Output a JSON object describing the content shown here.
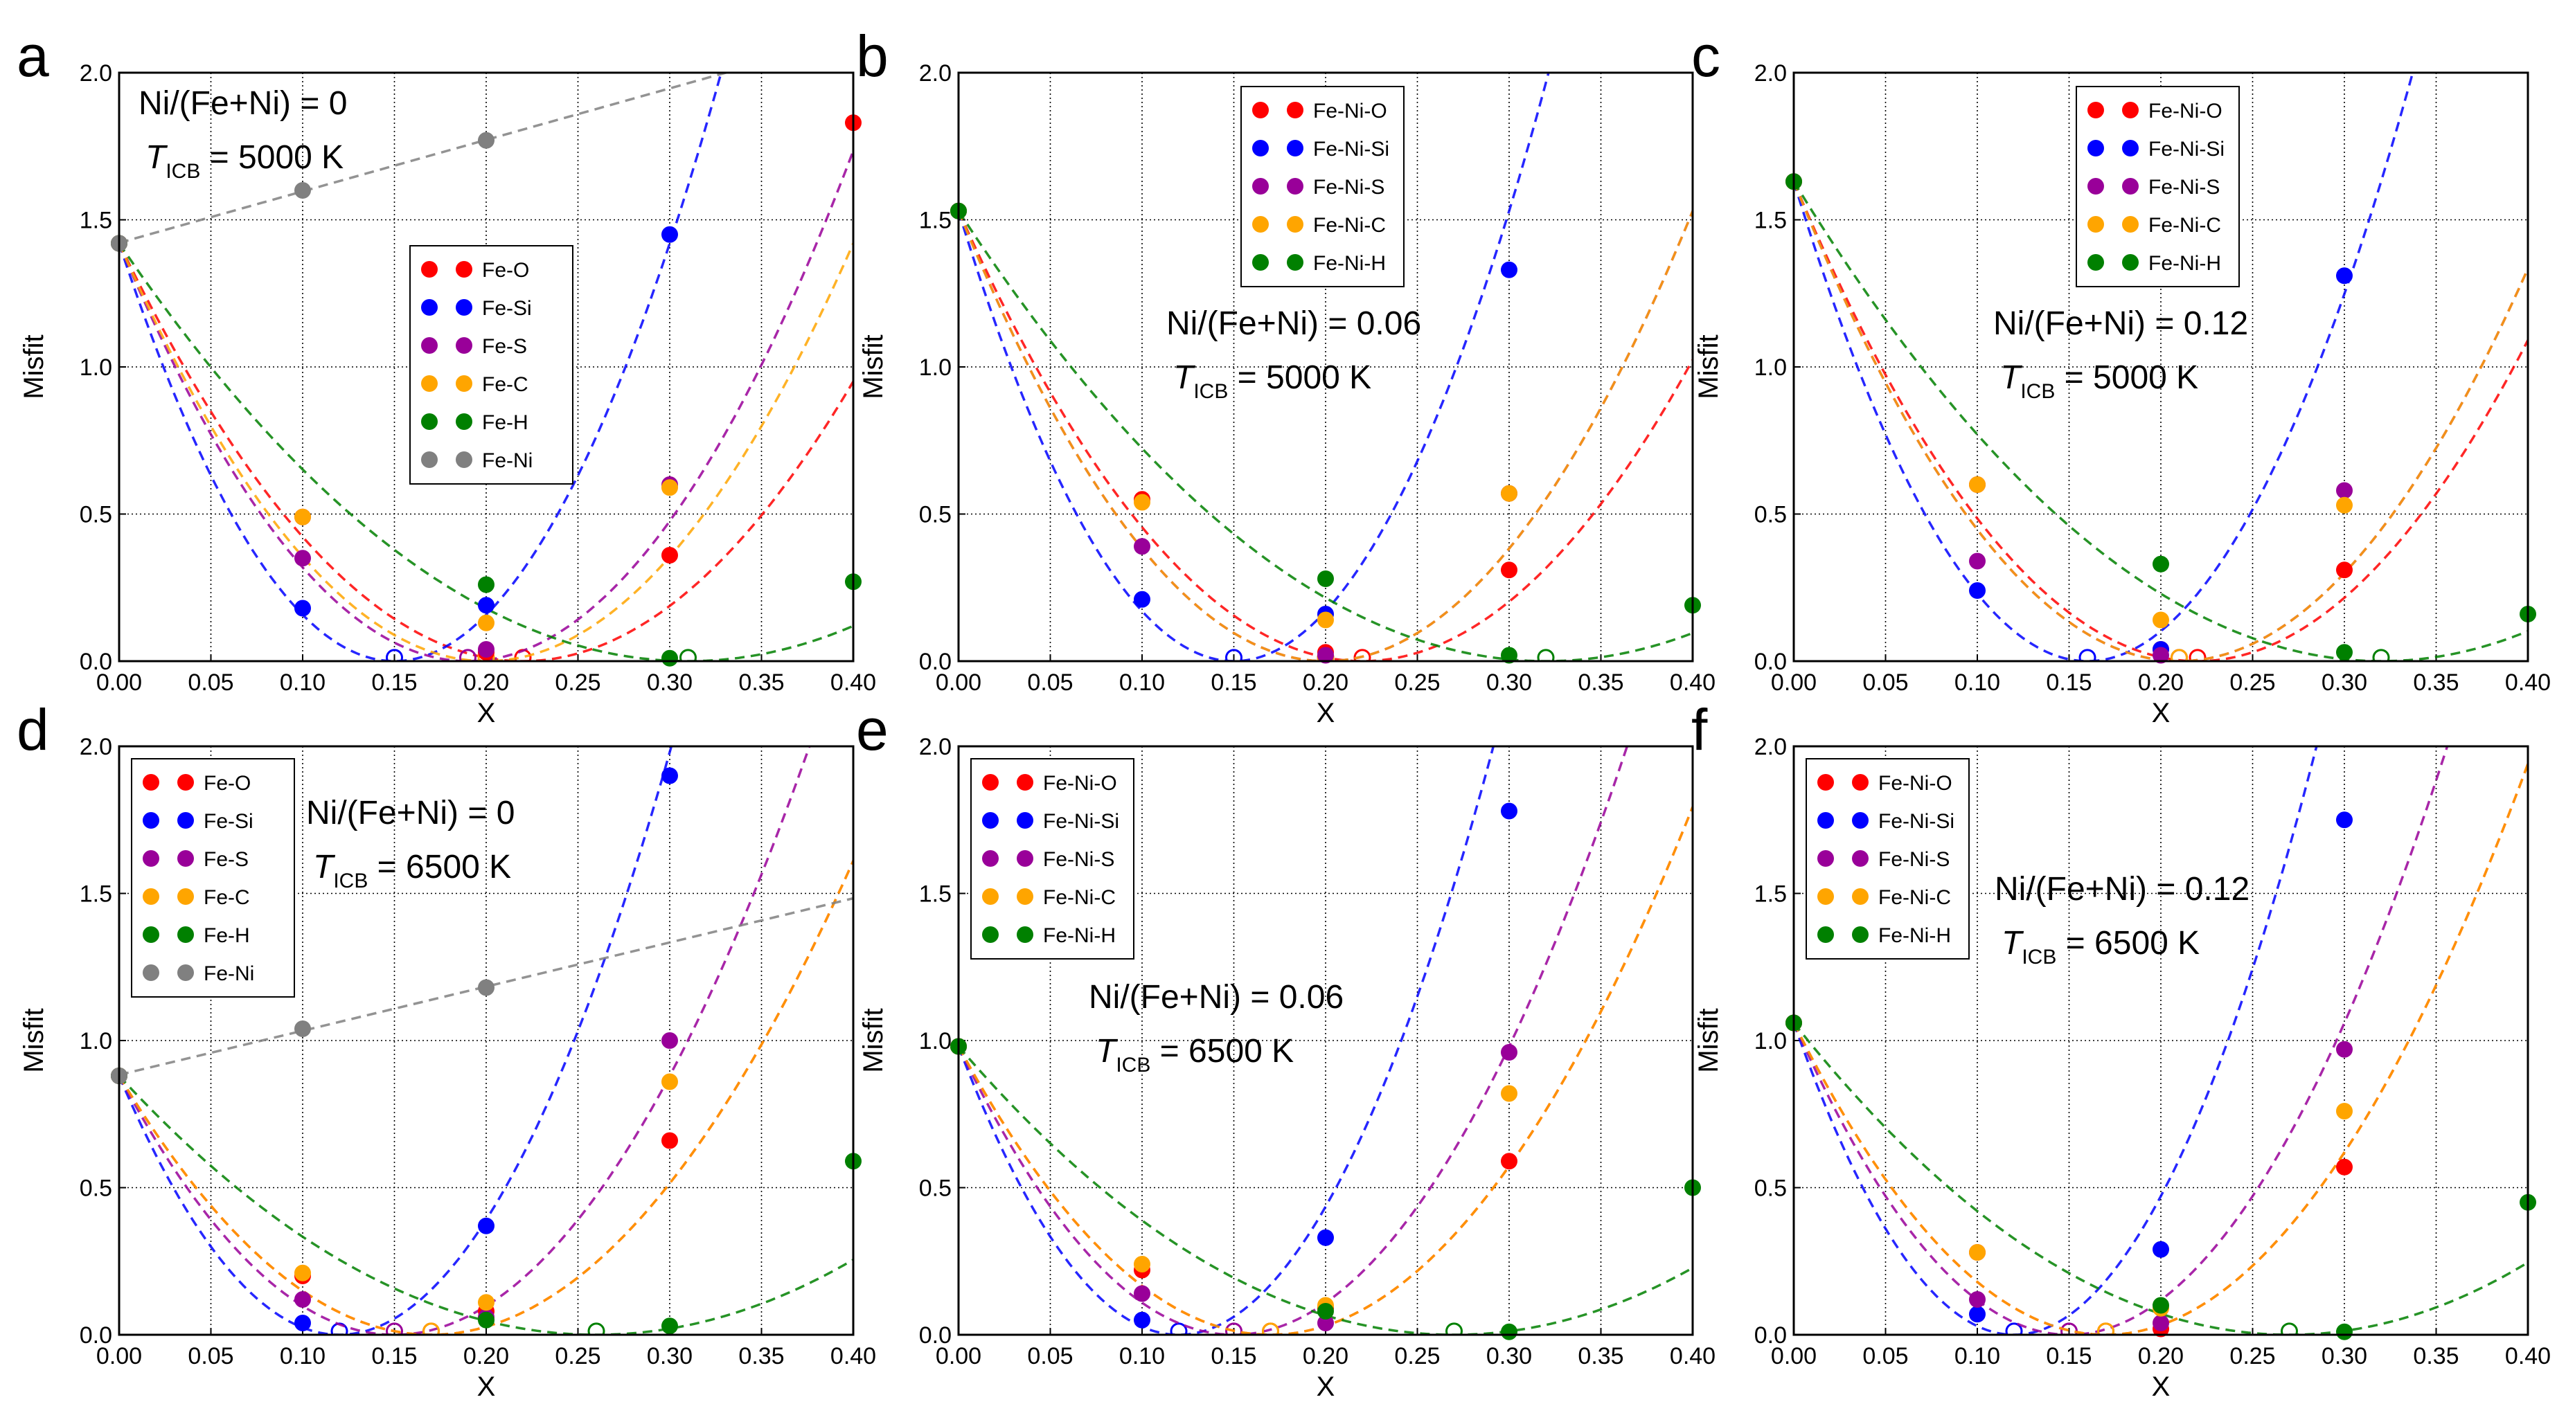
{
  "figure": {
    "colors": {
      "Fe-O": "#ff0000",
      "Fe-Si": "#0000ff",
      "Fe-S": "#990099",
      "Fe-C": "#ffa500",
      "Fe-H": "#008000",
      "Fe-Ni": "#808080"
    }
  },
  "chart_data": [
    {
      "panel": "a",
      "type": "scatter",
      "annotation": {
        "line1": "Ni/(Fe+Ni) = 0",
        "t_symbol": "T",
        "t_sub": "ICB",
        "t_value": " = 5000 K"
      },
      "xlabel": "X",
      "ylabel": "Misfit",
      "xlim": [
        0,
        0.4
      ],
      "ylim": [
        0,
        2.0
      ],
      "xticks": [
        "0.00",
        "0.05",
        "0.10",
        "0.15",
        "0.20",
        "0.25",
        "0.30",
        "0.35",
        "0.40"
      ],
      "yticks": [
        "0.0",
        "0.5",
        "1.0",
        "1.5",
        "2.0"
      ],
      "grid": true,
      "legend_position": "center",
      "series": [
        {
          "name": "Fe-O",
          "intercept": 1.42,
          "x": [
            0.1,
            0.2,
            0.3,
            0.4
          ],
          "y": [
            0.49,
            0.03,
            0.36,
            1.83
          ],
          "fit_min": 0.22
        },
        {
          "name": "Fe-Si",
          "intercept": 1.42,
          "x": [
            0.1,
            0.2,
            0.3
          ],
          "y": [
            0.18,
            0.19,
            1.45
          ],
          "fit_min": 0.15
        },
        {
          "name": "Fe-S",
          "intercept": 1.42,
          "x": [
            0.1,
            0.2,
            0.3
          ],
          "y": [
            0.35,
            0.04,
            0.6
          ],
          "fit_min": 0.19
        },
        {
          "name": "Fe-C",
          "intercept": 1.42,
          "x": [
            0.1,
            0.2,
            0.3
          ],
          "y": [
            0.49,
            0.13,
            0.59
          ],
          "fit_min": 0.2
        },
        {
          "name": "Fe-H",
          "intercept": 1.42,
          "x": [
            0.2,
            0.3,
            0.4
          ],
          "y": [
            0.26,
            0.01,
            0.27
          ],
          "fit_min": 0.31
        },
        {
          "name": "Fe-Ni",
          "intercept": 1.42,
          "x": [
            0.1,
            0.2
          ],
          "y": [
            1.6,
            1.77
          ],
          "linear": true
        }
      ]
    },
    {
      "panel": "b",
      "type": "scatter",
      "annotation": {
        "line1": "Ni/(Fe+Ni) = 0.06",
        "t_symbol": "T",
        "t_sub": "ICB",
        "t_value": " = 5000 K"
      },
      "xlabel": "X",
      "ylabel": "Misfit",
      "xlim": [
        0,
        0.4
      ],
      "ylim": [
        0,
        2.0
      ],
      "xticks": [
        "0.00",
        "0.05",
        "0.10",
        "0.15",
        "0.20",
        "0.25",
        "0.30",
        "0.35",
        "0.40"
      ],
      "yticks": [
        "0.0",
        "0.5",
        "1.0",
        "1.5",
        "2.0"
      ],
      "grid": true,
      "legend_position": "top-center",
      "series": [
        {
          "name": "Fe-Ni-O",
          "intercept": 1.53,
          "x": [
            0.1,
            0.2,
            0.3
          ],
          "y": [
            0.55,
            0.03,
            0.31
          ],
          "fit_min": 0.22
        },
        {
          "name": "Fe-Ni-Si",
          "intercept": 1.53,
          "x": [
            0.1,
            0.2,
            0.3
          ],
          "y": [
            0.21,
            0.16,
            1.33
          ],
          "fit_min": 0.15
        },
        {
          "name": "Fe-Ni-S",
          "intercept": 1.53,
          "x": [
            0.1,
            0.2,
            0.3
          ],
          "y": [
            0.39,
            0.02,
            0.57
          ],
          "fit_min": 0.2
        },
        {
          "name": "Fe-Ni-C",
          "intercept": 1.53,
          "x": [
            0.1,
            0.2,
            0.3
          ],
          "y": [
            0.54,
            0.14,
            0.57
          ],
          "fit_min": 0.2
        },
        {
          "name": "Fe-Ni-H",
          "intercept": 1.53,
          "x": [
            0.2,
            0.3,
            0.4
          ],
          "y": [
            0.28,
            0.02,
            0.19
          ],
          "fit_min": 0.32
        }
      ]
    },
    {
      "panel": "c",
      "type": "scatter",
      "annotation": {
        "line1": "Ni/(Fe+Ni) = 0.12",
        "t_symbol": "T",
        "t_sub": "ICB",
        "t_value": " = 5000 K"
      },
      "xlabel": "X",
      "ylabel": "Misfit",
      "xlim": [
        0,
        0.4
      ],
      "ylim": [
        0,
        2.0
      ],
      "xticks": [
        "0.00",
        "0.05",
        "0.10",
        "0.15",
        "0.20",
        "0.25",
        "0.30",
        "0.35",
        "0.40"
      ],
      "yticks": [
        "0.0",
        "0.5",
        "1.0",
        "1.5",
        "2.0"
      ],
      "grid": true,
      "legend_position": "top-center",
      "series": [
        {
          "name": "Fe-Ni-O",
          "intercept": 1.63,
          "x": [
            0.1,
            0.2,
            0.3
          ],
          "y": [
            0.6,
            0.04,
            0.31
          ],
          "fit_min": 0.22
        },
        {
          "name": "Fe-Ni-Si",
          "intercept": 1.63,
          "x": [
            0.1,
            0.2,
            0.3
          ],
          "y": [
            0.24,
            0.04,
            1.31
          ],
          "fit_min": 0.16
        },
        {
          "name": "Fe-Ni-S",
          "intercept": 1.63,
          "x": [
            0.1,
            0.2,
            0.3
          ],
          "y": [
            0.34,
            0.02,
            0.58
          ],
          "fit_min": 0.21
        },
        {
          "name": "Fe-Ni-C",
          "intercept": 1.63,
          "x": [
            0.1,
            0.2,
            0.3
          ],
          "y": [
            0.6,
            0.14,
            0.53
          ],
          "fit_min": 0.21
        },
        {
          "name": "Fe-Ni-H",
          "intercept": 1.63,
          "x": [
            0.2,
            0.3,
            0.4
          ],
          "y": [
            0.33,
            0.03,
            0.16
          ],
          "fit_min": 0.32
        }
      ]
    },
    {
      "panel": "d",
      "type": "scatter",
      "annotation": {
        "line1": "Ni/(Fe+Ni) = 0",
        "t_symbol": "T",
        "t_sub": "ICB",
        "t_value": " = 6500 K"
      },
      "xlabel": "X",
      "ylabel": "Misfit",
      "xlim": [
        0,
        0.4
      ],
      "ylim": [
        0,
        2.0
      ],
      "xticks": [
        "0.00",
        "0.05",
        "0.10",
        "0.15",
        "0.20",
        "0.25",
        "0.30",
        "0.35",
        "0.40"
      ],
      "yticks": [
        "0.0",
        "0.5",
        "1.0",
        "1.5",
        "2.0"
      ],
      "grid": true,
      "legend_position": "top-left",
      "series": [
        {
          "name": "Fe-O",
          "intercept": 0.88,
          "x": [
            0.1,
            0.2,
            0.3
          ],
          "y": [
            0.2,
            0.08,
            0.66
          ],
          "fit_min": 0.17
        },
        {
          "name": "Fe-Si",
          "intercept": 0.88,
          "x": [
            0.1,
            0.2,
            0.3
          ],
          "y": [
            0.04,
            0.37,
            1.9
          ],
          "fit_min": 0.12
        },
        {
          "name": "Fe-S",
          "intercept": 0.88,
          "x": [
            0.1,
            0.2,
            0.3
          ],
          "y": [
            0.12,
            0.06,
            1.0
          ],
          "fit_min": 0.15
        },
        {
          "name": "Fe-C",
          "intercept": 0.88,
          "x": [
            0.1,
            0.2,
            0.3
          ],
          "y": [
            0.21,
            0.11,
            0.86
          ],
          "fit_min": 0.17
        },
        {
          "name": "Fe-H",
          "intercept": 0.88,
          "x": [
            0.2,
            0.3,
            0.4
          ],
          "y": [
            0.05,
            0.03,
            0.59
          ],
          "fit_min": 0.26
        },
        {
          "name": "Fe-Ni",
          "intercept": 0.88,
          "x": [
            0.1,
            0.2
          ],
          "y": [
            1.04,
            1.18
          ],
          "linear": true
        }
      ]
    },
    {
      "panel": "e",
      "type": "scatter",
      "annotation": {
        "line1": "Ni/(Fe+Ni) = 0.06",
        "t_symbol": "T",
        "t_sub": "ICB",
        "t_value": " = 6500 K"
      },
      "xlabel": "X",
      "ylabel": "Misfit",
      "xlim": [
        0,
        0.4
      ],
      "ylim": [
        0,
        2.0
      ],
      "xticks": [
        "0.00",
        "0.05",
        "0.10",
        "0.15",
        "0.20",
        "0.25",
        "0.30",
        "0.35",
        "0.40"
      ],
      "yticks": [
        "0.0",
        "0.5",
        "1.0",
        "1.5",
        "2.0"
      ],
      "grid": true,
      "legend_position": "top-left",
      "series": [
        {
          "name": "Fe-Ni-O",
          "intercept": 0.98,
          "x": [
            0.1,
            0.2,
            0.3
          ],
          "y": [
            0.22,
            0.09,
            0.59
          ],
          "fit_min": 0.17
        },
        {
          "name": "Fe-Ni-Si",
          "intercept": 0.98,
          "x": [
            0.1,
            0.2,
            0.3
          ],
          "y": [
            0.05,
            0.33,
            1.78
          ],
          "fit_min": 0.12
        },
        {
          "name": "Fe-Ni-S",
          "intercept": 0.98,
          "x": [
            0.1,
            0.2,
            0.3
          ],
          "y": [
            0.14,
            0.04,
            0.96
          ],
          "fit_min": 0.15
        },
        {
          "name": "Fe-Ni-C",
          "intercept": 0.98,
          "x": [
            0.1,
            0.2,
            0.3
          ],
          "y": [
            0.24,
            0.1,
            0.82
          ],
          "fit_min": 0.17
        },
        {
          "name": "Fe-Ni-H",
          "intercept": 0.98,
          "x": [
            0.2,
            0.3,
            0.4
          ],
          "y": [
            0.08,
            0.01,
            0.5
          ],
          "fit_min": 0.27
        }
      ]
    },
    {
      "panel": "f",
      "type": "scatter",
      "annotation": {
        "line1": "Ni/(Fe+Ni) = 0.12",
        "t_symbol": "T",
        "t_sub": "ICB",
        "t_value": " = 6500 K"
      },
      "xlabel": "X",
      "ylabel": "Misfit",
      "xlim": [
        0,
        0.4
      ],
      "ylim": [
        0,
        2.0
      ],
      "xticks": [
        "0.00",
        "0.05",
        "0.10",
        "0.15",
        "0.20",
        "0.25",
        "0.30",
        "0.35",
        "0.40"
      ],
      "yticks": [
        "0.0",
        "0.5",
        "1.0",
        "1.5",
        "2.0"
      ],
      "grid": true,
      "legend_position": "top-left",
      "series": [
        {
          "name": "Fe-Ni-O",
          "intercept": 1.06,
          "x": [
            0.1,
            0.2,
            0.3
          ],
          "y": [
            0.28,
            0.02,
            0.57
          ],
          "fit_min": 0.17
        },
        {
          "name": "Fe-Ni-Si",
          "intercept": 1.06,
          "x": [
            0.1,
            0.2,
            0.3
          ],
          "y": [
            0.07,
            0.29,
            1.75
          ],
          "fit_min": 0.12
        },
        {
          "name": "Fe-Ni-S",
          "intercept": 1.06,
          "x": [
            0.1,
            0.2,
            0.3
          ],
          "y": [
            0.12,
            0.04,
            0.97
          ],
          "fit_min": 0.15
        },
        {
          "name": "Fe-Ni-C",
          "intercept": 1.06,
          "x": [
            0.1,
            0.2,
            0.3
          ],
          "y": [
            0.28,
            0.09,
            0.76
          ],
          "fit_min": 0.17
        },
        {
          "name": "Fe-Ni-H",
          "intercept": 1.06,
          "x": [
            0.2,
            0.3,
            0.4
          ],
          "y": [
            0.1,
            0.01,
            0.45
          ],
          "fit_min": 0.27
        }
      ]
    }
  ]
}
